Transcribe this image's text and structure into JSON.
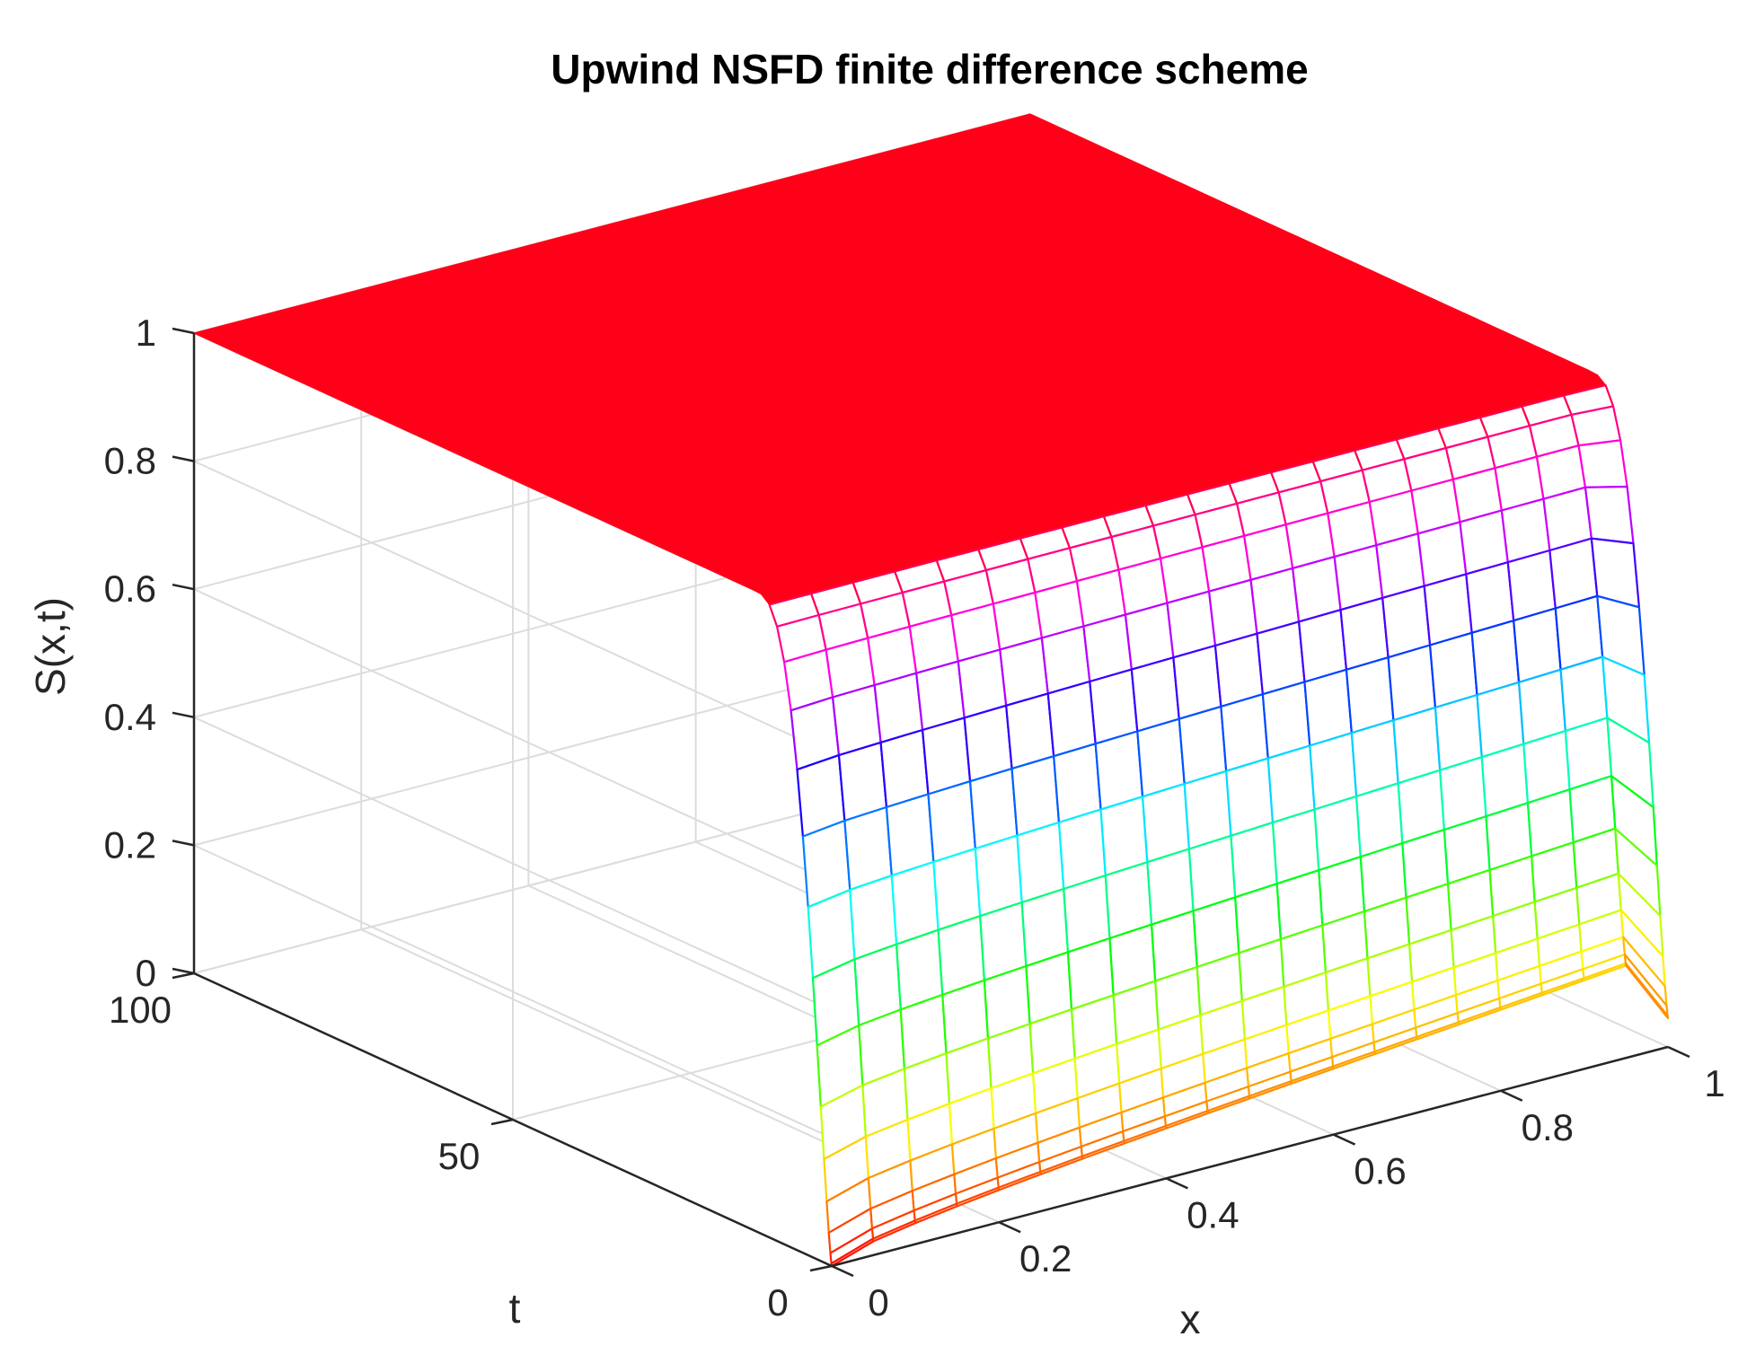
{
  "chart_data": {
    "type": "surface",
    "title": "Upwind NSFD finite difference scheme",
    "xlabel": "x",
    "ylabel": "t",
    "zlabel": "S(x,t)",
    "xlim": [
      0,
      1
    ],
    "ylim": [
      0,
      100
    ],
    "zlim": [
      0,
      1
    ],
    "xticks": [
      "0",
      "0.2",
      "0.4",
      "0.6",
      "0.8",
      "1"
    ],
    "yticks": [
      "0",
      "50",
      "100"
    ],
    "zticks": [
      "0",
      "0.2",
      "0.4",
      "0.6",
      "0.8",
      "1"
    ],
    "grid": true,
    "colormap": "hsv",
    "mesh": {
      "nx": 20,
      "nt": 51,
      "x_values": [
        0,
        0.05,
        0.1,
        0.15,
        0.2,
        0.25,
        0.3,
        0.35,
        0.4,
        0.45,
        0.5,
        0.55,
        0.6,
        0.65,
        0.7,
        0.75,
        0.8,
        0.85,
        0.9,
        0.95,
        1.0
      ],
      "t_values": [
        0,
        10,
        20,
        30,
        40,
        50,
        60,
        70,
        80,
        90,
        100
      ],
      "S_values": [
        [
          0.0,
          0.03,
          0.04,
          0.05,
          0.07,
          0.08,
          0.09,
          0.1,
          0.11,
          0.12,
          0.13,
          0.14,
          0.15,
          0.15,
          0.14,
          0.13,
          0.12,
          0.11,
          0.1,
          0.08,
          0.01
        ],
        [
          0.95,
          0.95,
          0.95,
          0.95,
          0.95,
          0.95,
          0.95,
          0.95,
          0.95,
          0.95,
          0.95,
          0.95,
          0.95,
          0.95,
          0.95,
          0.95,
          0.95,
          0.95,
          0.95,
          0.95,
          0.95
        ],
        [
          1.0,
          1.0,
          1.0,
          1.0,
          1.0,
          1.0,
          1.0,
          1.0,
          1.0,
          1.0,
          1.0,
          1.0,
          1.0,
          1.0,
          1.0,
          1.0,
          1.0,
          1.0,
          1.0,
          1.0,
          1.0
        ],
        [
          1.0,
          1.0,
          1.0,
          1.0,
          1.0,
          1.0,
          1.0,
          1.0,
          1.0,
          1.0,
          1.0,
          1.0,
          1.0,
          1.0,
          1.0,
          1.0,
          1.0,
          1.0,
          1.0,
          1.0,
          1.0
        ],
        [
          1.0,
          1.0,
          1.0,
          1.0,
          1.0,
          1.0,
          1.0,
          1.0,
          1.0,
          1.0,
          1.0,
          1.0,
          1.0,
          1.0,
          1.0,
          1.0,
          1.0,
          1.0,
          1.0,
          1.0,
          1.0
        ],
        [
          1.0,
          1.0,
          1.0,
          1.0,
          1.0,
          1.0,
          1.0,
          1.0,
          1.0,
          1.0,
          1.0,
          1.0,
          1.0,
          1.0,
          1.0,
          1.0,
          1.0,
          1.0,
          1.0,
          1.0,
          1.0
        ],
        [
          1.0,
          1.0,
          1.0,
          1.0,
          1.0,
          1.0,
          1.0,
          1.0,
          1.0,
          1.0,
          1.0,
          1.0,
          1.0,
          1.0,
          1.0,
          1.0,
          1.0,
          1.0,
          1.0,
          1.0,
          1.0
        ],
        [
          1.0,
          1.0,
          1.0,
          1.0,
          1.0,
          1.0,
          1.0,
          1.0,
          1.0,
          1.0,
          1.0,
          1.0,
          1.0,
          1.0,
          1.0,
          1.0,
          1.0,
          1.0,
          1.0,
          1.0,
          1.0
        ],
        [
          1.0,
          1.0,
          1.0,
          1.0,
          1.0,
          1.0,
          1.0,
          1.0,
          1.0,
          1.0,
          1.0,
          1.0,
          1.0,
          1.0,
          1.0,
          1.0,
          1.0,
          1.0,
          1.0,
          1.0,
          1.0
        ],
        [
          1.0,
          1.0,
          1.0,
          1.0,
          1.0,
          1.0,
          1.0,
          1.0,
          1.0,
          1.0,
          1.0,
          1.0,
          1.0,
          1.0,
          1.0,
          1.0,
          1.0,
          1.0,
          1.0,
          1.0,
          1.0
        ],
        [
          1.0,
          1.0,
          1.0,
          1.0,
          1.0,
          1.0,
          1.0,
          1.0,
          1.0,
          1.0,
          1.0,
          1.0,
          1.0,
          1.0,
          1.0,
          1.0,
          1.0,
          1.0,
          1.0,
          1.0,
          1.0
        ]
      ]
    }
  }
}
